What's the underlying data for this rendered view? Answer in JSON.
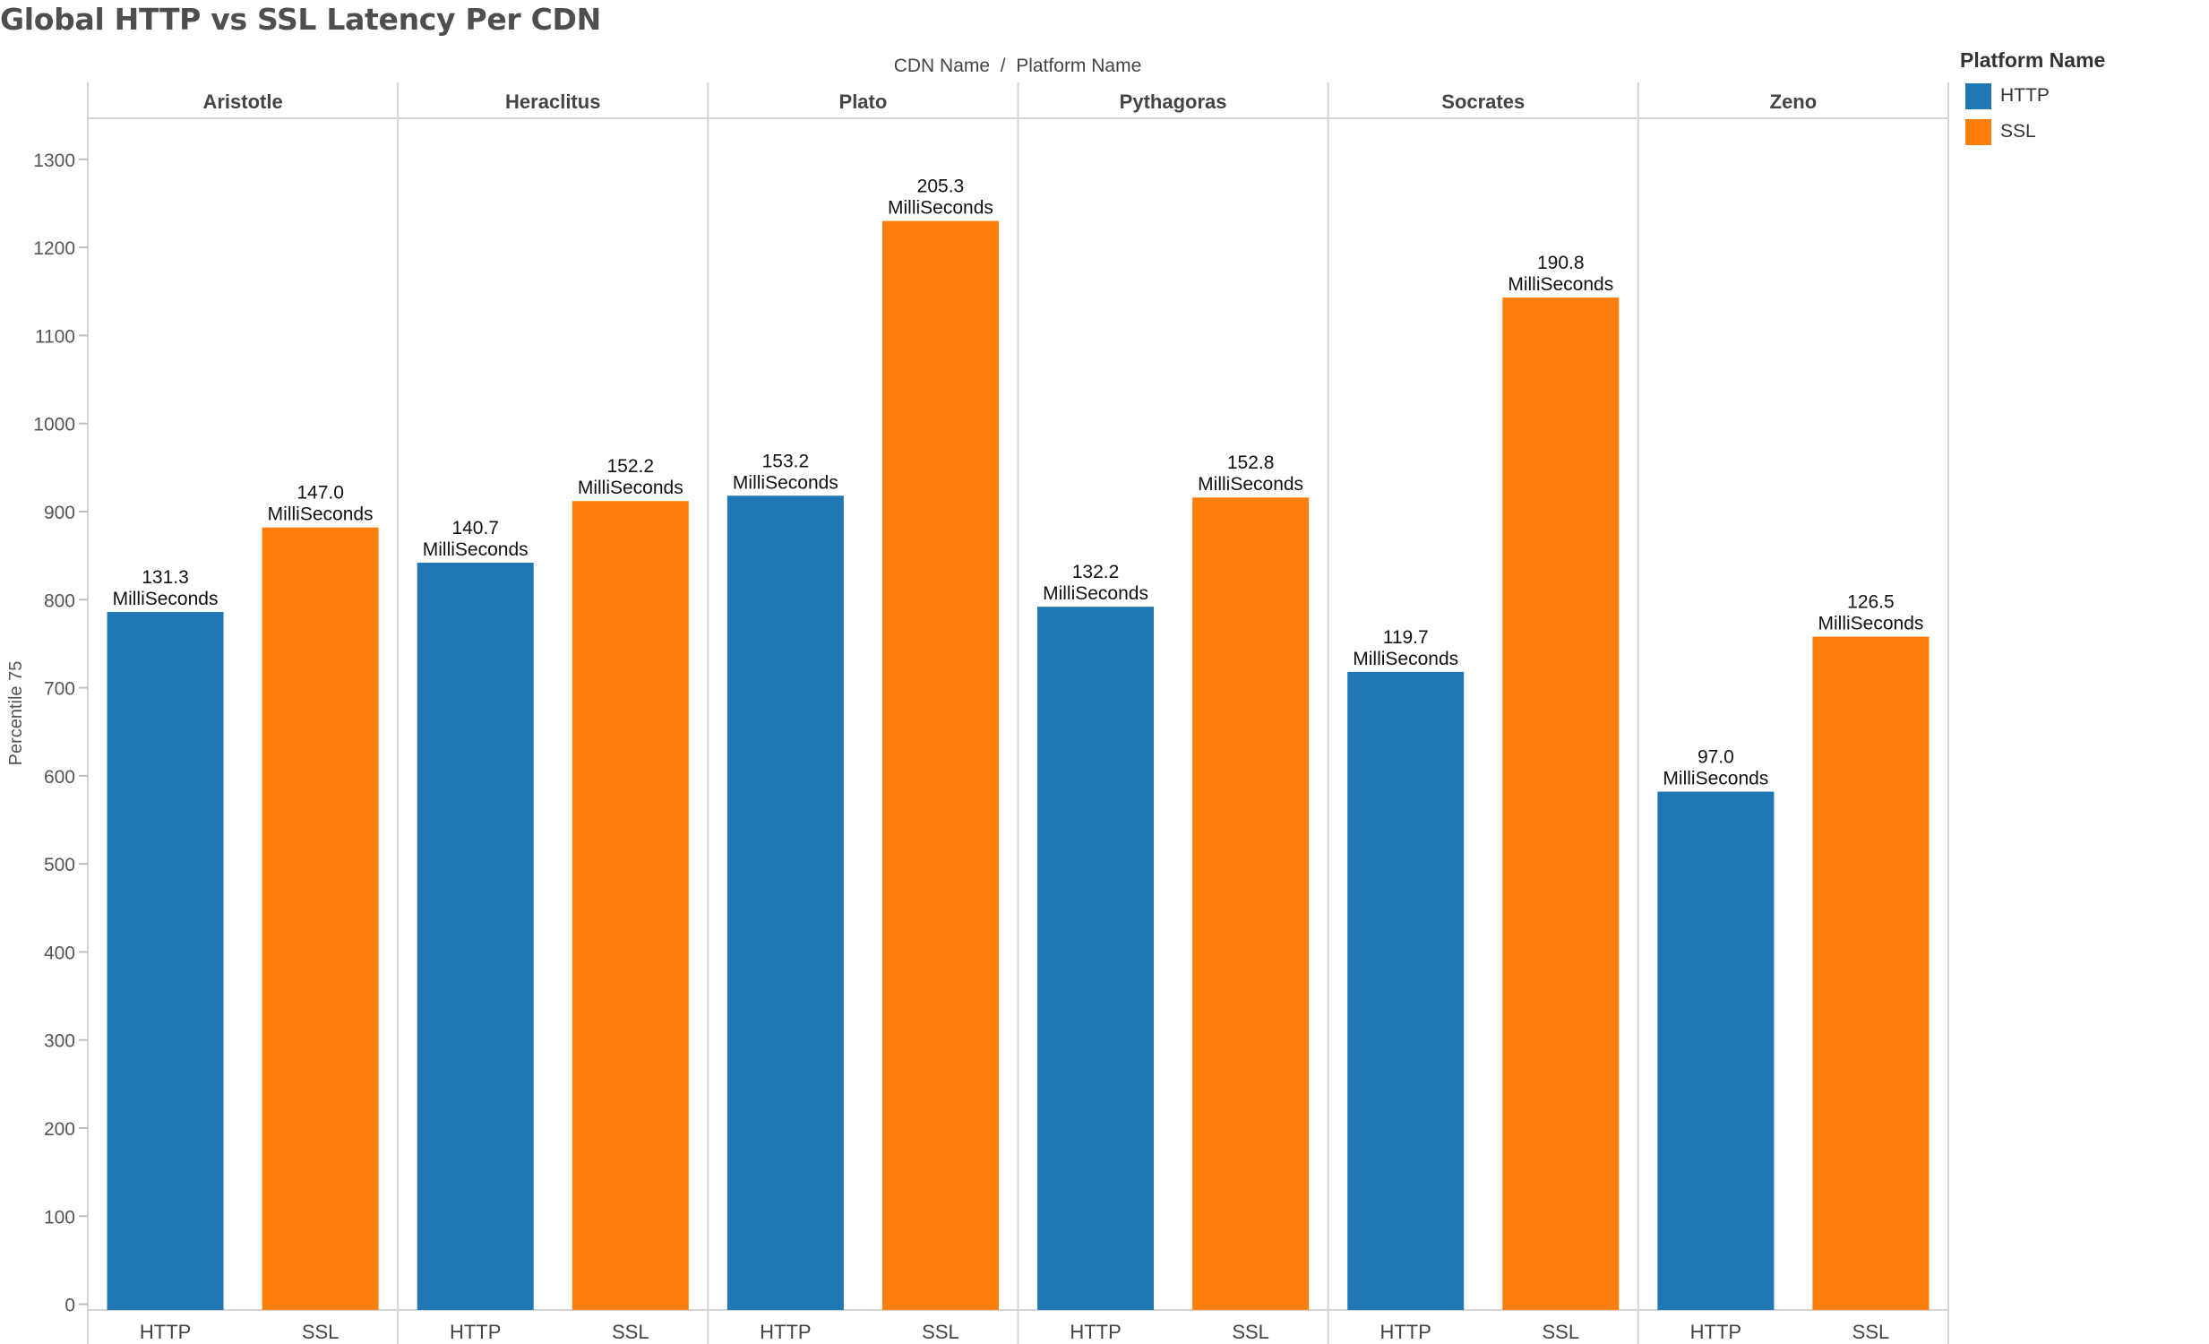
{
  "colors": {
    "HTTP": "#1f77b4",
    "SSL": "#ff7f0e"
  },
  "chart_data": {
    "type": "bar",
    "title": "Global HTTP vs SSL Latency Per CDN",
    "header": "CDN Name  /  Platform Name",
    "ylabel": "Percentile 75",
    "ylim": [
      0,
      1300
    ],
    "yticks": [
      "0",
      "100",
      "200",
      "300",
      "400",
      "500",
      "600",
      "700",
      "800",
      "900",
      "1000",
      "1100",
      "1200",
      "1300"
    ],
    "grid": false,
    "legend": {
      "title": "Platform Name",
      "placement": "top-right",
      "items": [
        "HTTP",
        "SSL"
      ]
    },
    "unit": "MilliSeconds",
    "groups": [
      {
        "name": "Aristotle",
        "bars": [
          {
            "platform": "HTTP",
            "value": 786,
            "label": "131.3"
          },
          {
            "platform": "SSL",
            "value": 882,
            "label": "147.0"
          }
        ]
      },
      {
        "name": "Heraclitus",
        "bars": [
          {
            "platform": "HTTP",
            "value": 842,
            "label": "140.7"
          },
          {
            "platform": "SSL",
            "value": 912,
            "label": "152.2"
          }
        ]
      },
      {
        "name": "Plato",
        "bars": [
          {
            "platform": "HTTP",
            "value": 918,
            "label": "153.2"
          },
          {
            "platform": "SSL",
            "value": 1230,
            "label": "205.3"
          }
        ]
      },
      {
        "name": "Pythagoras",
        "bars": [
          {
            "platform": "HTTP",
            "value": 792,
            "label": "132.2"
          },
          {
            "platform": "SSL",
            "value": 916,
            "label": "152.8"
          }
        ]
      },
      {
        "name": "Socrates",
        "bars": [
          {
            "platform": "HTTP",
            "value": 718,
            "label": "119.7"
          },
          {
            "platform": "SSL",
            "value": 1143,
            "label": "190.8"
          }
        ]
      },
      {
        "name": "Zeno",
        "bars": [
          {
            "platform": "HTTP",
            "value": 582,
            "label": "97.0"
          },
          {
            "platform": "SSL",
            "value": 758,
            "label": "126.5"
          }
        ]
      }
    ]
  }
}
